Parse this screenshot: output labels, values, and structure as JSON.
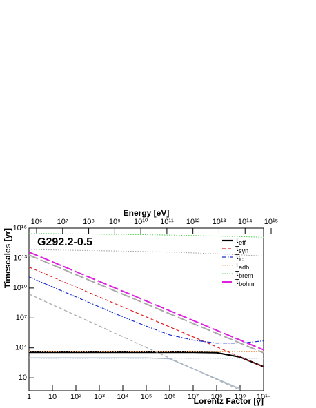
{
  "chart_data": {
    "type": "line",
    "annotation": "G292.2-0.5",
    "xlabel": "Lorentz Factor [γ]",
    "ylabel": "Timescales [yr]",
    "x2label": "Energy [eV]",
    "log_x": true,
    "log_y": true,
    "xlim": [
      1,
      10000000000
    ],
    "ylim": [
      0.5,
      10000000000000000
    ],
    "x2lim": [
      511000,
      511000000000000
    ],
    "xticks": [
      1,
      10,
      {
        "value": 100,
        "label": "10²"
      },
      {
        "value": 1000,
        "label": "10³"
      },
      {
        "value": 10000,
        "label": "10⁴"
      },
      {
        "value": 100000,
        "label": "10⁵"
      },
      {
        "value": 1000000,
        "label": "10⁶"
      },
      {
        "value": 10000000,
        "label": "10⁷"
      },
      {
        "value": 100000000,
        "label": "10⁸"
      },
      {
        "value": 1000000000,
        "label": "10⁹"
      },
      {
        "value": 10000000000,
        "label": "10¹⁰"
      }
    ],
    "yticks": [
      10,
      {
        "value": 10000,
        "label": "10⁴"
      },
      {
        "value": 10000000,
        "label": "10⁷"
      },
      {
        "value": 10000000000,
        "label": "10¹⁰"
      },
      {
        "value": 10000000000000,
        "label": "10¹³"
      },
      {
        "value": 10000000000000000,
        "label": "10¹⁶"
      }
    ],
    "x2ticks": [
      {
        "value": 1000000,
        "label": "10⁶"
      },
      {
        "value": 10000000,
        "label": "10⁷"
      },
      {
        "value": 100000000,
        "label": "10⁸"
      },
      {
        "value": 1000000000,
        "label": "10⁹"
      },
      {
        "value": 10000000000,
        "label": "10¹⁰"
      },
      {
        "value": 100000000000,
        "label": "10¹¹"
      },
      {
        "value": 1000000000000,
        "label": "10¹²"
      },
      {
        "value": 10000000000000,
        "label": "10¹³"
      },
      {
        "value": 100000000000000,
        "label": "10¹⁴"
      },
      {
        "value": 1000000000000000,
        "label": "10¹⁵"
      }
    ],
    "legend": "upper right",
    "x": [
      1,
      10,
      100,
      1000,
      10000,
      100000,
      1000000,
      10000000,
      100000000,
      1000000000,
      10000000000
    ],
    "series": [
      {
        "name": "τeff",
        "color": "#000000",
        "dash": "solid",
        "width": 2.2,
        "values": [
          3600,
          3600,
          3600,
          3600,
          3600,
          3600,
          3600,
          3600,
          3300,
          1200,
          130
        ]
      },
      {
        "name": "τsyn",
        "color": "#e02020",
        "dash": "dashed",
        "width": 1.2,
        "values": [
          1260000000000.0,
          126000000000.0,
          12600000000.0,
          1260000000.0,
          126000000.0,
          12600000.0,
          1260000.0,
          126000.0,
          12600,
          1260,
          126
        ]
      },
      {
        "name": "τic",
        "color": "#1a2fd0",
        "dash": "dashdot",
        "width": 1.2,
        "values": [
          130000000000.0,
          13000000000.0,
          1300000000.0,
          130000000.0,
          13000000.0,
          1500000.0,
          200000,
          60000,
          30000,
          30000,
          50000
        ]
      },
      {
        "name": "τadb",
        "color": "#f0a060",
        "dash": "dotted",
        "width": 1,
        "values": [
          4000,
          4000,
          4000,
          4000,
          4000,
          4000,
          4000,
          4000,
          4000,
          4000,
          4000
        ]
      },
      {
        "name": "τbrem",
        "color": "#50d050",
        "dash": "dotted",
        "width": 1,
        "values": [
          3000000000000000.0,
          2800000000000000.0,
          2600000000000000.0,
          2500000000000000.0,
          2300000000000000.0,
          2200000000000000.0,
          2000000000000000.0,
          1800000000000000.0,
          1600000000000000.0,
          1400000000000000.0,
          1200000000000000.0
        ]
      },
      {
        "name": "τbohm",
        "color": "#e020e0",
        "dash": "longdash",
        "width": 2,
        "values": [
          39800000000000.0,
          4170000000000.0,
          437000000000.0,
          45700000000.0,
          4790000000.0,
          501000000.0,
          52500000.0,
          5500000.0,
          575000,
          60300,
          6310
        ]
      },
      {
        "color": "#a8a8a8",
        "dash": "longdash",
        "width": 2,
        "values": [
          20000000000000.0,
          2090000000000.0,
          219000000000.0,
          22900000000.0,
          2400000000.0,
          250000000.0,
          26000000.0,
          2750000.0,
          290000,
          30000,
          3200
        ]
      },
      {
        "color": "#a0a0a0",
        "dash": "dotted",
        "width": 1,
        "values": [
          70000000000000.0,
          65000000000000.0,
          60000000000000.0,
          55000000000000.0,
          50000000000000.0,
          45000000000000.0,
          40000000000000.0,
          33000000000000.0,
          27000000000000.0,
          21000000000000.0,
          16000000000000.0
        ]
      },
      {
        "color": "#b0b0b0",
        "dash": "dashed",
        "width": 1.4,
        "values": [
          2500000000.0,
          210000000.0,
          18000000.0,
          1550000.0,
          130000,
          11000,
          950,
          81,
          6.9,
          0.59,
          null
        ]
      },
      {
        "color": "#a8b8c8",
        "dash": "solid",
        "width": 1.4,
        "values": [
          1000,
          1000,
          1000,
          1000,
          1000,
          1000,
          800,
          80,
          8,
          0.8,
          null
        ]
      },
      {
        "color": "#90a8c8",
        "dash": "dotted",
        "width": 1,
        "values": [
          900,
          900,
          900,
          900,
          900,
          900,
          900,
          900,
          900,
          900,
          900
        ]
      }
    ]
  }
}
